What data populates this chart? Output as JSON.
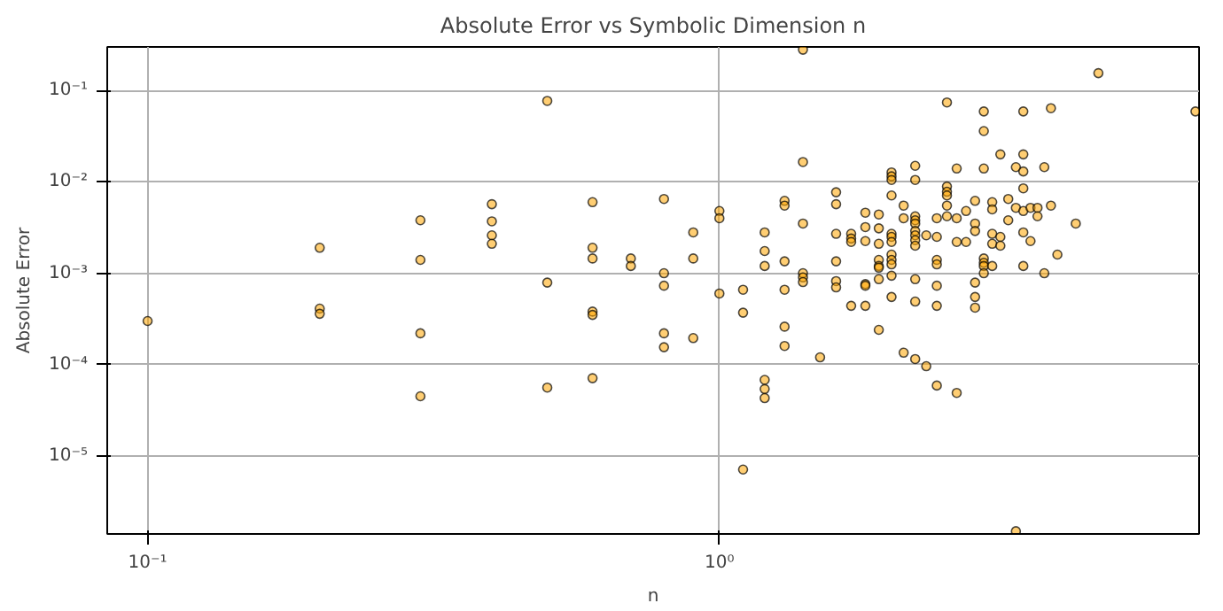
{
  "chart_data": {
    "type": "scatter",
    "title": "Absolute Error vs Symbolic Dimension n",
    "xlabel": "n",
    "ylabel": "Absolute Error",
    "log": "xy",
    "grid": true,
    "marker": "circle",
    "xlim": [
      0.085,
      6.9
    ],
    "ylim": [
      1.4e-06,
      0.3
    ],
    "xticks": [
      {
        "value": 0.1,
        "label": "10⁻¹"
      },
      {
        "value": 1,
        "label": "10⁰"
      }
    ],
    "yticks": [
      {
        "value": 1e-05,
        "label": "10⁻⁵"
      },
      {
        "value": 0.0001,
        "label": "10⁻⁴"
      },
      {
        "value": 0.001,
        "label": "10⁻³"
      },
      {
        "value": 0.01,
        "label": "10⁻²"
      },
      {
        "value": 0.1,
        "label": "10⁻¹"
      }
    ],
    "series": [
      {
        "color": "#ffa500",
        "x": [
          0.1,
          0.2,
          0.2,
          0.2,
          0.3,
          0.3,
          0.3,
          0.3,
          0.4,
          0.4,
          0.4,
          0.4,
          0.5,
          0.5,
          0.5,
          0.6,
          0.6,
          0.6,
          0.6,
          0.6,
          0.6,
          0.7,
          0.7,
          0.8,
          0.8,
          0.8,
          0.8,
          0.8,
          0.9,
          0.9,
          0.9,
          1.0,
          1.0,
          1.0,
          1.1,
          1.1,
          1.1,
          1.2,
          1.2,
          1.2,
          1.2,
          1.2,
          1.2,
          1.3,
          1.3,
          1.3,
          1.3,
          1.3,
          1.3,
          1.4,
          1.4,
          1.4,
          1.4,
          1.4,
          1.4,
          1.5,
          1.6,
          1.6,
          1.6,
          1.6,
          1.6,
          1.6,
          1.7,
          1.7,
          1.7,
          1.7,
          1.8,
          1.8,
          1.8,
          1.8,
          1.8,
          1.8,
          1.9,
          1.9,
          1.9,
          1.9,
          1.9,
          1.9,
          1.9,
          1.9,
          2.0,
          2.0,
          2.0,
          2.0,
          2.0,
          2.0,
          2.0,
          2.0,
          2.0,
          2.0,
          2.0,
          2.0,
          2.1,
          2.1,
          2.1,
          2.2,
          2.2,
          2.2,
          2.2,
          2.2,
          2.2,
          2.2,
          2.2,
          2.2,
          2.2,
          2.2,
          2.2,
          2.3,
          2.3,
          2.4,
          2.4,
          2.4,
          2.4,
          2.4,
          2.4,
          2.4,
          2.5,
          2.5,
          2.5,
          2.5,
          2.5,
          2.5,
          2.6,
          2.6,
          2.6,
          2.6,
          2.7,
          2.7,
          2.8,
          2.8,
          2.8,
          2.8,
          2.8,
          2.8,
          2.9,
          2.9,
          2.9,
          2.9,
          2.9,
          2.9,
          2.9,
          3.0,
          3.0,
          3.0,
          3.0,
          3.0,
          3.1,
          3.1,
          3.1,
          3.2,
          3.2,
          3.3,
          3.3,
          3.3,
          3.4,
          3.4,
          3.4,
          3.4,
          3.4,
          3.4,
          3.4,
          3.5,
          3.5,
          3.6,
          3.6,
          3.7,
          3.7,
          3.8,
          3.8,
          3.9,
          4.2,
          4.6,
          6.8
        ],
        "values": [
          0.0003,
          0.0019,
          0.00041,
          0.00036,
          0.0038,
          0.0014,
          0.00022,
          4.5e-05,
          0.0057,
          0.0037,
          0.0026,
          0.0021,
          0.077,
          0.00079,
          5.6e-05,
          0.006,
          0.0019,
          0.00145,
          0.00038,
          0.00035,
          7.1e-05,
          0.00145,
          0.0012,
          0.0065,
          0.001,
          0.00073,
          0.00022,
          0.000155,
          0.0028,
          0.00145,
          0.000195,
          0.0048,
          0.004,
          0.0006,
          0.00066,
          0.00037,
          7.1e-06,
          0.0028,
          0.00175,
          0.0012,
          6.8e-05,
          5.4e-05,
          4.3e-05,
          0.0062,
          0.0055,
          0.00135,
          0.00066,
          0.00026,
          0.00016,
          0.28,
          0.0165,
          0.0035,
          0.001,
          0.0009,
          0.0008,
          0.00012,
          0.0077,
          0.0057,
          0.0027,
          0.00135,
          0.00082,
          0.0007,
          0.0027,
          0.0024,
          0.0022,
          0.00044,
          0.0046,
          0.0032,
          0.00225,
          0.00076,
          0.00073,
          0.00044,
          0.0044,
          0.0031,
          0.0021,
          0.0014,
          0.0012,
          0.00115,
          0.00086,
          0.00024,
          0.0127,
          0.0115,
          0.0105,
          0.0071,
          0.0027,
          0.0025,
          0.0022,
          0.0016,
          0.0014,
          0.00125,
          0.00094,
          0.00055,
          0.0055,
          0.004,
          0.000135,
          0.015,
          0.0105,
          0.0042,
          0.0038,
          0.0035,
          0.0029,
          0.0026,
          0.0023,
          0.002,
          0.00086,
          0.00049,
          0.000115,
          0.0026,
          9.6e-05,
          0.004,
          0.0025,
          0.0014,
          0.00125,
          0.00073,
          0.00044,
          5.9e-05,
          0.074,
          0.0089,
          0.0078,
          0.0071,
          0.0055,
          0.0042,
          0.014,
          0.004,
          0.0022,
          4.9e-05,
          0.0048,
          0.0022,
          0.0062,
          0.0035,
          0.0029,
          0.00079,
          0.00055,
          0.00042,
          0.059,
          0.036,
          0.014,
          0.00145,
          0.0013,
          0.0012,
          0.001,
          0.006,
          0.005,
          0.0027,
          0.0021,
          0.0012,
          0.02,
          0.0025,
          0.002,
          0.0065,
          0.0038,
          0.0145,
          0.0052,
          1.5e-06,
          0.059,
          0.02,
          0.013,
          0.0085,
          0.0048,
          0.0028,
          0.0012,
          0.0052,
          0.00225,
          0.0052,
          0.0042,
          0.0145,
          0.001,
          0.064,
          0.0055,
          0.0016,
          0.0035,
          0.155,
          0.059
        ]
      }
    ]
  }
}
